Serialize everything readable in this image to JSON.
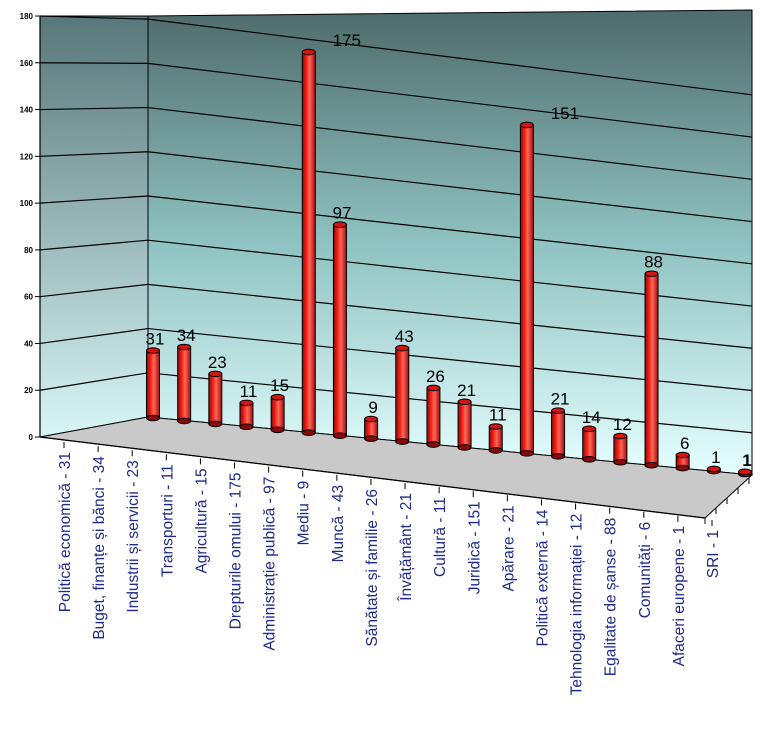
{
  "chart_data": {
    "type": "bar",
    "title": "",
    "xlabel": "",
    "ylabel": "",
    "ylim": [
      0,
      180
    ],
    "yticks": [
      0,
      20,
      40,
      60,
      80,
      100,
      120,
      140,
      160,
      180
    ],
    "grid": true,
    "style": "3d-cylinder",
    "colors": {
      "bar": "#e8141a",
      "bar_dark": "#8a0a0a",
      "bar_light": "#ff7a6e",
      "wall_top": "#4f6b6b",
      "wall_bottom": "#e4ffff",
      "floor": "#c8c8c8",
      "label": "#1e2a8c"
    },
    "categories": [
      "Politică economică - 31",
      "Buget, finanțe și bănci - 34",
      "Industrii și servicii - 23",
      "Transporturi - 11",
      "Agricultură - 15",
      "Drepturile omului - 175",
      "Administrație publică - 97",
      "Mediu - 9",
      "Muncă - 43",
      "Sănătate și familie - 26",
      "Învățământ - 21",
      "Cultură - 11",
      "Juridică - 151",
      "Apărare - 21",
      "Politică externă - 14",
      "Tehnologia informației - 12",
      "Egalitate de șanse - 88",
      "Comunități - 6",
      "Afaceri europene - 1",
      "SRI - 1"
    ],
    "values": [
      31,
      34,
      23,
      11,
      15,
      175,
      97,
      9,
      43,
      26,
      21,
      11,
      151,
      21,
      14,
      12,
      88,
      6,
      1,
      1
    ],
    "value_labels": [
      "31",
      "34",
      "23",
      "11",
      "15",
      "175",
      "97",
      "9",
      "43",
      "26",
      "21",
      "11",
      "151",
      "21",
      "14",
      "12",
      "88",
      "6",
      "1",
      "1"
    ]
  }
}
